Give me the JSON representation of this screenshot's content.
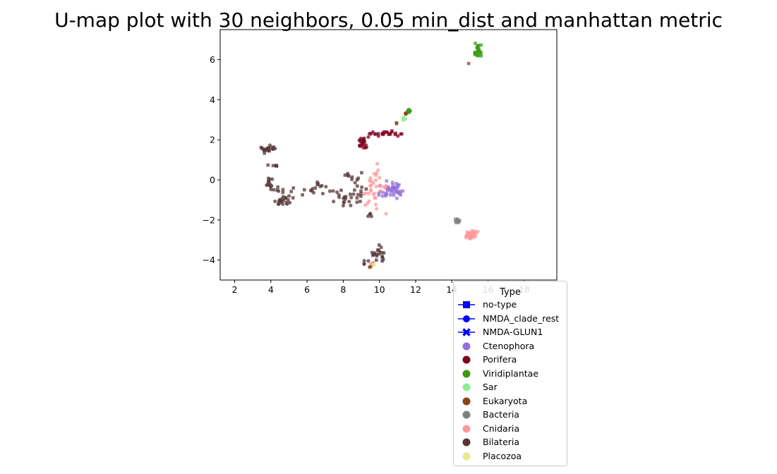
{
  "chart_data": {
    "type": "scatter",
    "title": "U-map plot with 30 neighbors, 0.05 min_dist and manhattan metric",
    "xlabel": "",
    "ylabel": "",
    "xlim": [
      1.2,
      19.8
    ],
    "ylim": [
      -5.0,
      7.5
    ],
    "x_ticks": [
      2,
      4,
      6,
      8,
      10,
      12,
      14,
      16,
      18
    ],
    "y_ticks": [
      -4,
      -2,
      0,
      2,
      4,
      6
    ],
    "grid": false,
    "legend": {
      "title": "Type",
      "placement": "bottom-right, outside",
      "marker_entries": [
        {
          "label": "no-type",
          "marker": "square",
          "color": "#0000ff"
        },
        {
          "label": "NMDA_clade_rest",
          "marker": "circle",
          "color": "#0000ff"
        },
        {
          "label": "NMDA-GLUN1",
          "marker": "x",
          "color": "#0000ff"
        }
      ],
      "color_entries": [
        {
          "label": "Ctenophora",
          "color": "#9370db"
        },
        {
          "label": "Porifera",
          "color": "#800020"
        },
        {
          "label": "Viridiplantae",
          "color": "#3a9a14"
        },
        {
          "label": "Sar",
          "color": "#90ee90"
        },
        {
          "label": "Eukaryota",
          "color": "#8b4513"
        },
        {
          "label": "Bacteria",
          "color": "#808080"
        },
        {
          "label": "Cnidaria",
          "color": "#ff9a9a"
        },
        {
          "label": "Bilateria",
          "color": "#553538"
        },
        {
          "label": "Placozoa",
          "color": "#f0e68c"
        }
      ]
    },
    "clusters": [
      {
        "group": "Bilateria",
        "marker": "square",
        "cx": 3.7,
        "cy": 1.5,
        "sx": 0.25,
        "sy": 0.15,
        "n": 14
      },
      {
        "group": "Bilateria",
        "marker": "circle",
        "cx": 4.1,
        "cy": 1.6,
        "sx": 0.15,
        "sy": 0.08,
        "n": 6
      },
      {
        "group": "Bilateria",
        "marker": "square",
        "cx": 4.3,
        "cy": 0.7,
        "sx": 0.25,
        "sy": 0.06,
        "n": 5
      },
      {
        "group": "Bilateria",
        "marker": "circle",
        "cx": 3.9,
        "cy": -0.2,
        "sx": 0.15,
        "sy": 0.3,
        "n": 12
      },
      {
        "group": "Bilateria",
        "marker": "square",
        "cx": 4.9,
        "cy": -0.6,
        "sx": 0.6,
        "sy": 0.2,
        "n": 14
      },
      {
        "group": "Bilateria",
        "marker": "circle",
        "cx": 4.7,
        "cy": -1.1,
        "sx": 0.35,
        "sy": 0.12,
        "n": 16
      },
      {
        "group": "Bilateria",
        "marker": "circle",
        "cx": 6.4,
        "cy": -0.5,
        "sx": 0.6,
        "sy": 0.25,
        "n": 8
      },
      {
        "group": "Bilateria",
        "marker": "square",
        "cx": 6.5,
        "cy": -0.3,
        "sx": 0.3,
        "sy": 0.15,
        "n": 5
      },
      {
        "group": "Bilateria",
        "marker": "square",
        "cx": 8.2,
        "cy": 0.2,
        "sx": 0.3,
        "sy": 0.1,
        "n": 6
      },
      {
        "group": "Bilateria",
        "marker": "circle",
        "cx": 8.2,
        "cy": -0.8,
        "sx": 0.5,
        "sy": 0.4,
        "n": 18
      },
      {
        "group": "Bilateria",
        "marker": "square",
        "cx": 8.8,
        "cy": -0.5,
        "sx": 0.4,
        "sy": 0.5,
        "n": 15
      },
      {
        "group": "Bilateria",
        "marker": "circle",
        "cx": 9.5,
        "cy": -1.8,
        "sx": 0.15,
        "sy": 0.2,
        "n": 4
      },
      {
        "group": "Bilateria",
        "marker": "square",
        "cx": 9.9,
        "cy": -3.7,
        "sx": 0.35,
        "sy": 0.3,
        "n": 20
      },
      {
        "group": "Bilateria",
        "marker": "circle",
        "cx": 9.3,
        "cy": -4.1,
        "sx": 0.2,
        "sy": 0.15,
        "n": 5
      },
      {
        "group": "Porifera",
        "marker": "circle",
        "cx": 9.2,
        "cy": 1.8,
        "sx": 0.25,
        "sy": 0.2,
        "n": 22
      },
      {
        "group": "Porifera",
        "marker": "square",
        "cx": 10.5,
        "cy": 2.3,
        "sx": 0.5,
        "sy": 0.1,
        "n": 18
      },
      {
        "group": "Porifera",
        "marker": "circle",
        "cx": 9.8,
        "cy": 2.3,
        "sx": 0.2,
        "sy": 0.07,
        "n": 6
      },
      {
        "group": "Ctenophora",
        "marker": "square",
        "cx": 10.8,
        "cy": -0.5,
        "sx": 0.4,
        "sy": 0.25,
        "n": 38
      },
      {
        "group": "Ctenophora",
        "marker": "circle",
        "cx": 10.1,
        "cy": -0.6,
        "sx": 0.2,
        "sy": 0.2,
        "n": 8
      },
      {
        "group": "Cnidaria",
        "marker": "circle",
        "cx": 9.7,
        "cy": -0.7,
        "sx": 0.45,
        "sy": 0.7,
        "n": 26
      },
      {
        "group": "Cnidaria",
        "marker": "square",
        "cx": 9.9,
        "cy": 0.2,
        "sx": 0.35,
        "sy": 0.4,
        "n": 8
      },
      {
        "group": "Cnidaria",
        "marker": "square",
        "cx": 15.0,
        "cy": -2.75,
        "sx": 0.25,
        "sy": 0.15,
        "n": 34
      },
      {
        "group": "Cnidaria",
        "marker": "circle",
        "cx": 9.6,
        "cy": -4.2,
        "sx": 0.15,
        "sy": 0.1,
        "n": 3
      },
      {
        "group": "Bacteria",
        "marker": "square",
        "cx": 14.3,
        "cy": -2.05,
        "sx": 0.1,
        "sy": 0.08,
        "n": 10
      },
      {
        "group": "Viridiplantae",
        "marker": "square",
        "cx": 15.4,
        "cy": 6.4,
        "sx": 0.2,
        "sy": 0.3,
        "n": 22
      },
      {
        "group": "Viridiplantae",
        "marker": "circle",
        "cx": 11.6,
        "cy": 3.4,
        "sx": 0.08,
        "sy": 0.1,
        "n": 8
      },
      {
        "group": "Sar",
        "marker": "square",
        "cx": 11.4,
        "cy": 3.05,
        "sx": 0.1,
        "sy": 0.08,
        "n": 5
      },
      {
        "group": "Eukaryota",
        "marker": "circle",
        "cx": 11.5,
        "cy": 3.3,
        "sx": 0.05,
        "sy": 0.05,
        "n": 3
      },
      {
        "group": "Eukaryota",
        "marker": "square",
        "cx": 11.0,
        "cy": 2.8,
        "sx": 0.05,
        "sy": 0.05,
        "n": 2
      },
      {
        "group": "Eukaryota",
        "marker": "square",
        "cx": 14.9,
        "cy": 5.8,
        "sx": 0.03,
        "sy": 0.03,
        "n": 1
      },
      {
        "group": "Eukaryota",
        "marker": "square",
        "cx": 9.4,
        "cy": -4.35,
        "sx": 0.03,
        "sy": 0.03,
        "n": 1
      },
      {
        "group": "Placozoa",
        "marker": "circle",
        "cx": 9.7,
        "cy": -4.25,
        "sx": 0.08,
        "sy": 0.06,
        "n": 3
      }
    ]
  }
}
